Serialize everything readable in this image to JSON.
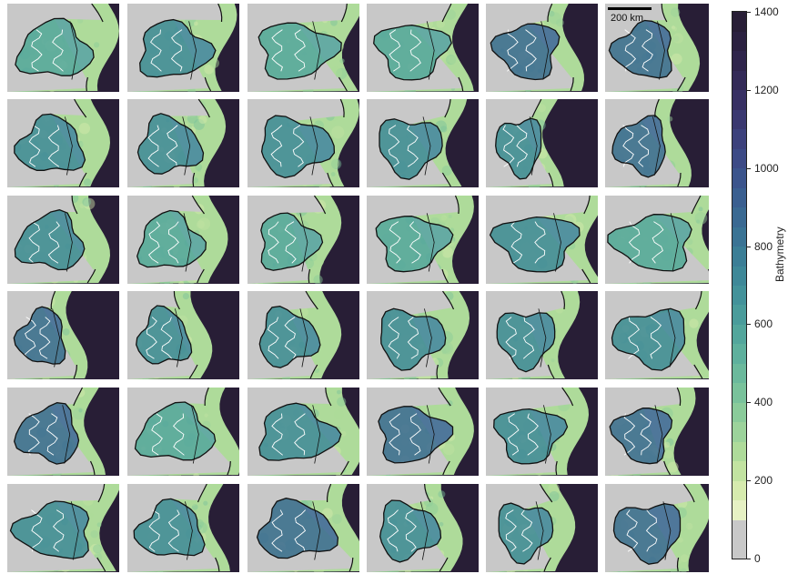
{
  "chart_data": {
    "type": "heatmap",
    "description_grid": "6x6 small-multiple bathymetry maps of catchment basins with contour lines and basin outlines",
    "rows": 6,
    "cols": 6,
    "colorbar": {
      "label": "Bathymetry",
      "vmin": 0,
      "vmax": 1400,
      "ticks": [
        0,
        200,
        400,
        600,
        800,
        1000,
        1200,
        1400
      ],
      "levels": [
        0,
        100,
        150,
        200,
        250,
        300,
        350,
        400,
        450,
        500,
        550,
        600,
        650,
        700,
        750,
        800,
        850,
        900,
        950,
        1000,
        1050,
        1100,
        1150,
        1200,
        1250,
        1300,
        1350,
        1400
      ],
      "colors": [
        "#c8c8c8",
        "#e6f1c4",
        "#d6ebae",
        "#c2e3a1",
        "#aedb9a",
        "#9cd39b",
        "#8acb9a",
        "#79c29b",
        "#6bb99c",
        "#5eb09d",
        "#53a69c",
        "#4a9c9b",
        "#43929a",
        "#3e8898",
        "#3b7e96",
        "#3a7394",
        "#3a6992",
        "#3a5f90",
        "#3b548c",
        "#3c4a86",
        "#3c417c",
        "#3a3870",
        "#373063",
        "#332a57",
        "#2f254b",
        "#2b2140",
        "#281e36"
      ]
    },
    "scalebar": {
      "label": "200 km"
    }
  },
  "colors": {
    "land": "#c8c8c8",
    "deep": "#281e36",
    "outline": "#111111",
    "contour": "#ffffff"
  }
}
